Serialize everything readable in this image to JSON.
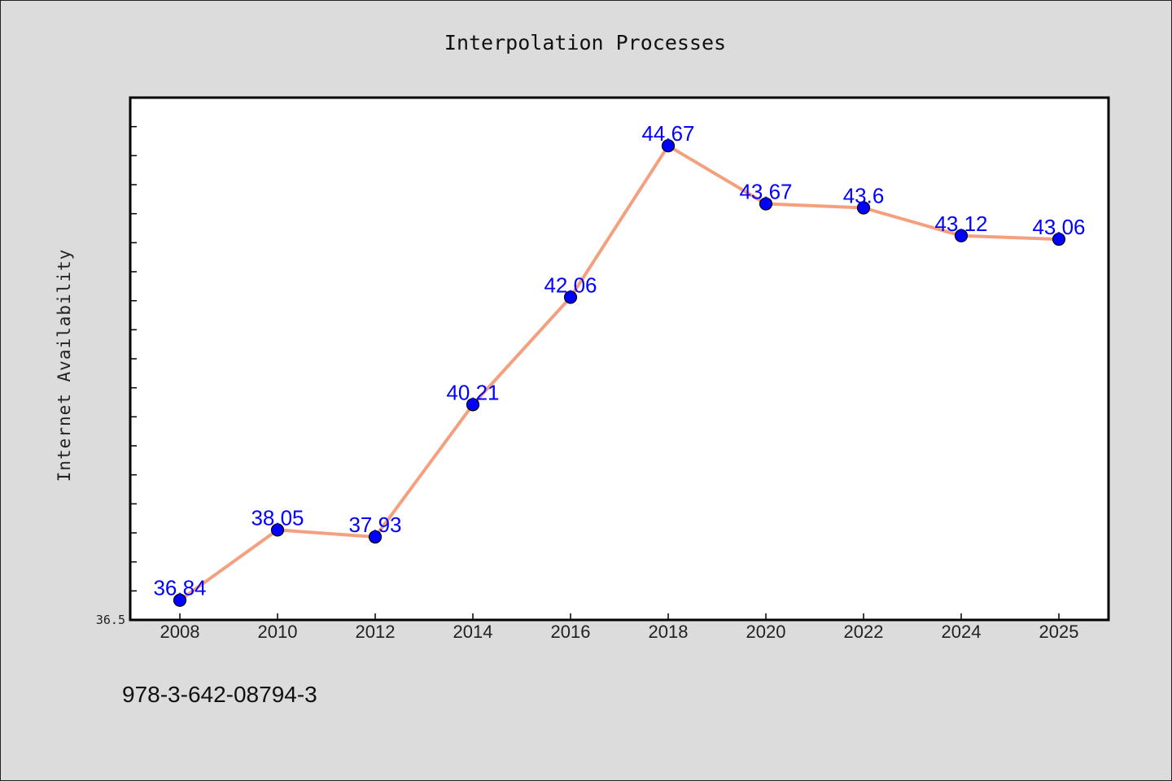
{
  "chart_data": {
    "type": "line",
    "title": "Interpolation Processes",
    "xlabel": "",
    "ylabel": "Internet Availability",
    "categories": [
      "2008",
      "2010",
      "2012",
      "2014",
      "2016",
      "2018",
      "2020",
      "2022",
      "2024",
      "2025"
    ],
    "values": [
      36.84,
      38.05,
      37.93,
      40.21,
      42.06,
      44.67,
      43.67,
      43.6,
      43.12,
      43.06
    ],
    "data_labels": [
      "36.84",
      "38.05",
      "37.93",
      "40.21",
      "42.06",
      "44.67",
      "43.67",
      "43.6",
      "43.12",
      "43.06"
    ],
    "ylim": [
      36.5,
      45.5
    ],
    "y_tick_labels": [
      "36.5"
    ],
    "grid": false,
    "legend": "none",
    "colors": {
      "line": "#f4a07f",
      "marker": "#0000ff",
      "label": "#0000ff",
      "plot_background": "#ffffff",
      "figure_background": "#dcdcdc"
    }
  },
  "footer": {
    "isbn": "978-3-642-08794-3"
  }
}
